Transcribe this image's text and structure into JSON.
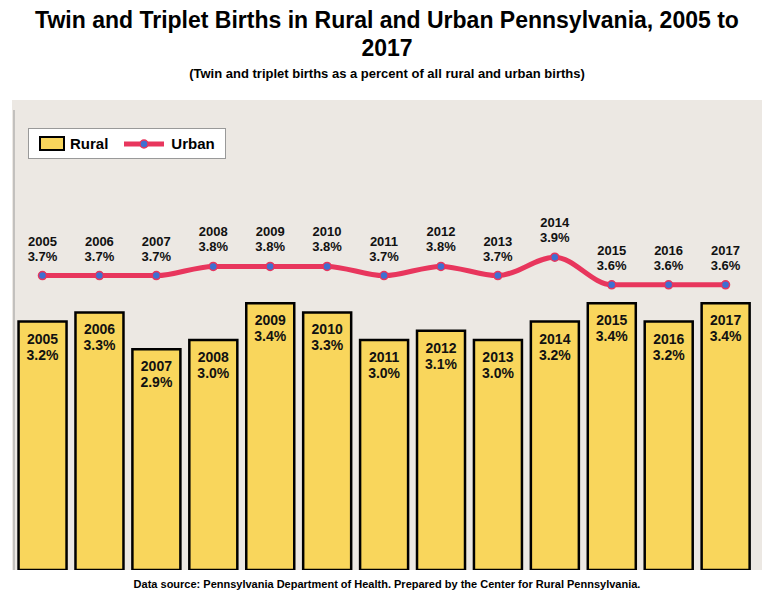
{
  "chart_data": {
    "type": "bar",
    "title": "Twin and Triplet Births in Rural and Urban Pennsylvania, 2005 to 2017",
    "subtitle": "(Twin and triplet births as a percent of all rural and urban births)",
    "annotations": [
      "Data source: Pennsylvania Department of Health. Prepared by the Center for Rural Pennsylvania."
    ],
    "categories": [
      "2005",
      "2006",
      "2007",
      "2008",
      "2009",
      "2010",
      "2011",
      "2012",
      "2013",
      "2014",
      "2015",
      "2016",
      "2017"
    ],
    "series": [
      {
        "name": "Rural",
        "type": "bar",
        "color": "#f9d65c",
        "values": [
          3.2,
          3.3,
          2.9,
          3.0,
          3.4,
          3.3,
          3.0,
          3.1,
          3.0,
          3.2,
          3.4,
          3.2,
          3.4
        ],
        "value_labels": [
          "3.2%",
          "3.3%",
          "2.9%",
          "3.0%",
          "3.4%",
          "3.3%",
          "3.0%",
          "3.1%",
          "3.0%",
          "3.2%",
          "3.4%",
          "3.2%",
          "3.4%"
        ]
      },
      {
        "name": "Urban",
        "type": "line",
        "color": "#e8365d",
        "marker": "circle",
        "values": [
          3.7,
          3.7,
          3.7,
          3.8,
          3.8,
          3.8,
          3.7,
          3.8,
          3.7,
          3.9,
          3.6,
          3.6,
          3.6
        ],
        "value_labels": [
          "3.7%",
          "3.7%",
          "3.7%",
          "3.8%",
          "3.8%",
          "3.8%",
          "3.7%",
          "3.8%",
          "3.7%",
          "3.9%",
          "3.6%",
          "3.6%",
          "3.6%"
        ]
      }
    ],
    "ylim": [
      0.5,
      5.5
    ],
    "data_labels": true,
    "tick_labels": false,
    "legend": "upper left"
  }
}
